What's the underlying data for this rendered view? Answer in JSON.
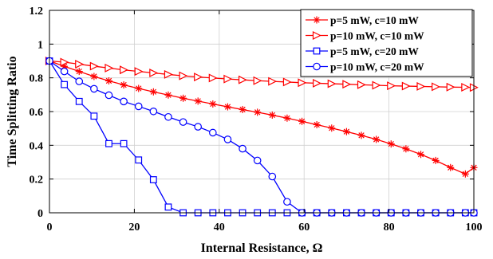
{
  "chart_data": {
    "type": "line",
    "title": "",
    "xlabel": "Internal Resistance, Ω",
    "ylabel": "Time Splitting Ratio",
    "xlim": [
      0,
      100
    ],
    "ylim": [
      0,
      1.2
    ],
    "xticks": [
      0,
      20,
      40,
      60,
      80,
      100
    ],
    "yticks": [
      0,
      0.2,
      0.4,
      0.6,
      0.8,
      1,
      1.2
    ],
    "grid": true,
    "legend_position": "top-right",
    "x": [
      0,
      3.5,
      7,
      10.5,
      14,
      17.5,
      21,
      24.5,
      28,
      31.5,
      35,
      38.5,
      42,
      45.5,
      49,
      52.5,
      56,
      59.5,
      63,
      66.5,
      70,
      73.5,
      77,
      80.5,
      84,
      87.5,
      91,
      94.5,
      98,
      100
    ],
    "series": [
      {
        "name": "p=5 mW, c=10 mW",
        "color": "#ff0000",
        "marker": "star",
        "values": [
          0.9,
          0.868,
          0.838,
          0.808,
          0.782,
          0.758,
          0.737,
          0.717,
          0.698,
          0.679,
          0.662,
          0.645,
          0.628,
          0.612,
          0.596,
          0.579,
          0.561,
          0.542,
          0.522,
          0.502,
          0.481,
          0.459,
          0.435,
          0.408,
          0.379,
          0.346,
          0.31,
          0.268,
          0.23,
          0.268
        ]
      },
      {
        "name": "p=10 mW, c=10 mW",
        "color": "#ff0000",
        "marker": "triangle-right",
        "values": [
          0.9,
          0.893,
          0.881,
          0.869,
          0.858,
          0.847,
          0.838,
          0.829,
          0.82,
          0.812,
          0.805,
          0.799,
          0.793,
          0.788,
          0.783,
          0.779,
          0.775,
          0.771,
          0.768,
          0.765,
          0.762,
          0.759,
          0.756,
          0.753,
          0.751,
          0.749,
          0.747,
          0.745,
          0.744,
          0.743
        ]
      },
      {
        "name": "p=5 mW, c=20 mW",
        "color": "#0000ff",
        "marker": "square",
        "values": [
          0.9,
          0.76,
          0.66,
          0.573,
          0.41,
          0.41,
          0.313,
          0.196,
          0.034,
          0,
          0,
          0,
          0,
          0,
          0,
          0,
          0,
          0,
          0,
          0,
          0,
          0,
          0,
          0,
          0,
          0,
          0,
          0,
          0,
          0
        ]
      },
      {
        "name": "p=10 mW, c=20 mW",
        "color": "#0000ff",
        "marker": "circle",
        "values": [
          0.9,
          0.838,
          0.779,
          0.735,
          0.697,
          0.66,
          0.631,
          0.601,
          0.568,
          0.538,
          0.51,
          0.475,
          0.435,
          0.38,
          0.31,
          0.215,
          0.065,
          0,
          0,
          0,
          0,
          0,
          0,
          0,
          0,
          0,
          0,
          0,
          0,
          0
        ]
      }
    ]
  }
}
